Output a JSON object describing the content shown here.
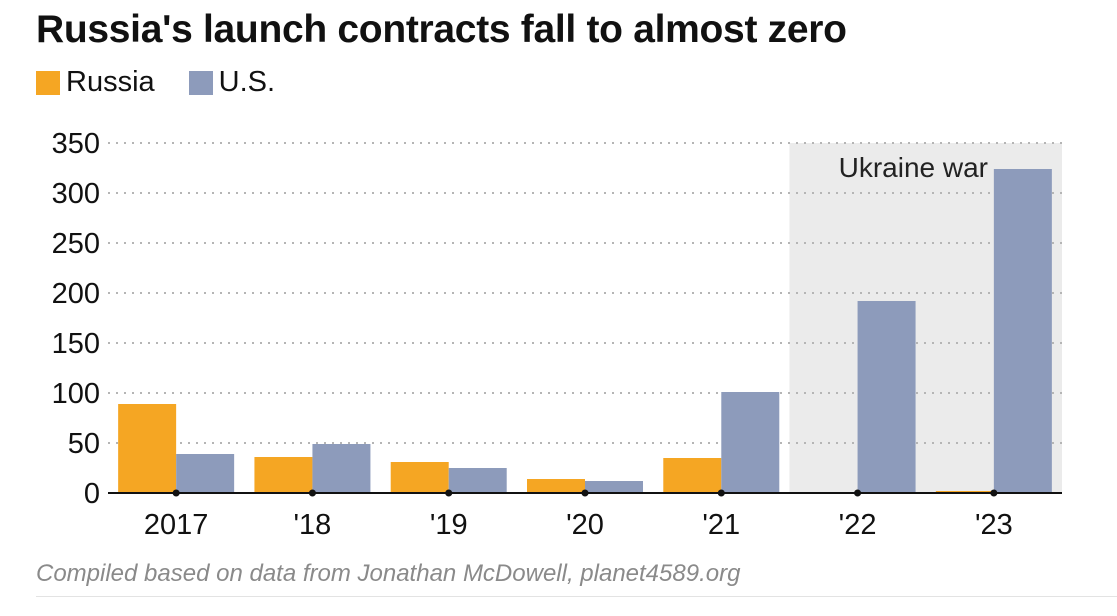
{
  "header": {
    "title": "Russia's launch contracts fall to almost zero"
  },
  "footer": {
    "source": "Compiled based on data from Jonathan McDowell, planet4589.org"
  },
  "chart_data": {
    "type": "bar",
    "title": "Russia's launch contracts fall to almost zero",
    "categories": [
      "2017",
      "'18",
      "'19",
      "'20",
      "'21",
      "'22",
      "'23"
    ],
    "series": [
      {
        "name": "Russia",
        "color": "#f5a623",
        "values": [
          89,
          36,
          31,
          14,
          35,
          1,
          2
        ]
      },
      {
        "name": "U.S.",
        "color": "#8d9bbb",
        "values": [
          39,
          49,
          25,
          12,
          101,
          192,
          324
        ]
      }
    ],
    "ylim": [
      0,
      350
    ],
    "yticks": [
      0,
      50,
      100,
      150,
      200,
      250,
      300,
      350
    ],
    "grid": true,
    "legend_position": "top-left",
    "annotation": {
      "label": "Ukraine war",
      "categories": [
        "'22",
        "'23"
      ],
      "color": "#ebebeb"
    }
  }
}
